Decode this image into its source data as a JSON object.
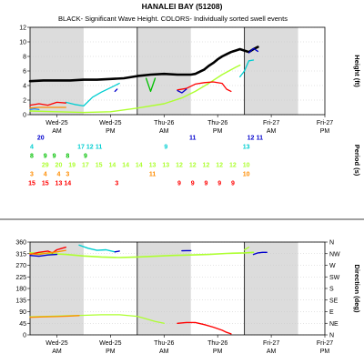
{
  "title": "HANALEI BAY (51208)",
  "subtitle": "BLACK- Significant Wave Height.  COLORS- Individually sorted swell events",
  "colors": {
    "height": "#000000",
    "shade": "#dcdcdc",
    "events": [
      "#ff0000",
      "#ff8c00",
      "#adff2f",
      "#00c000",
      "#00ced1",
      "#1e90ff",
      "#0000cd",
      "#ff1493"
    ]
  },
  "x_ticks": [
    {
      "day": "Wed-25",
      "ampm": "AM"
    },
    {
      "day": "Wed-25",
      "ampm": "PM"
    },
    {
      "day": "Thu-26",
      "ampm": "AM"
    },
    {
      "day": "Thu-26",
      "ampm": "PM"
    },
    {
      "day": "Fri-27",
      "ampm": "AM"
    },
    {
      "day": "Fri-27",
      "ampm": "PM"
    }
  ],
  "chart_data": [
    {
      "type": "line",
      "ylabel": "Height (ft)",
      "ylim": [
        0,
        12
      ],
      "yticks": [
        0,
        2,
        4,
        6,
        8,
        10,
        12
      ],
      "xlim": [
        0,
        66
      ],
      "x_units": "hours from Wed-25 00:00",
      "series": [
        {
          "color_key": "height",
          "width": 2.6,
          "x": [
            0,
            3,
            6,
            9,
            12,
            15,
            18,
            21,
            24,
            27,
            30,
            33,
            36,
            37,
            38,
            39,
            40,
            41,
            42,
            43,
            44,
            45,
            46,
            47,
            48,
            49,
            50,
            51
          ],
          "y": [
            4.6,
            4.7,
            4.7,
            4.7,
            4.8,
            4.8,
            4.9,
            5.0,
            5.3,
            5.5,
            5.6,
            5.5,
            5.5,
            5.6,
            5.9,
            6.2,
            6.7,
            7.1,
            7.6,
            8.0,
            8.3,
            8.6,
            8.8,
            9.0,
            8.8,
            8.6,
            9.0,
            9.3
          ]
        },
        {
          "color_key": 2,
          "width": 1.4,
          "x": [
            0,
            6,
            12,
            18,
            24,
            30,
            34,
            37,
            40,
            43,
            46,
            47
          ],
          "y": [
            0.5,
            0.4,
            0.3,
            0.4,
            0.9,
            1.5,
            2.3,
            3.2,
            4.3,
            5.5,
            6.5,
            6.8
          ]
        },
        {
          "color_key": 4,
          "width": 1.3,
          "x": [
            8,
            10,
            12,
            14,
            16,
            18,
            20
          ],
          "y": [
            1.7,
            1.4,
            1.2,
            2.4,
            3.1,
            3.7,
            4.3
          ]
        },
        {
          "color_key": 4,
          "width": 1.3,
          "x": [
            47,
            48,
            49,
            50
          ],
          "y": [
            5.2,
            6.0,
            7.4,
            7.5
          ]
        },
        {
          "color_key": 3,
          "width": 1.3,
          "x": [
            26,
            27,
            28
          ],
          "y": [
            5.0,
            3.2,
            5.0
          ]
        },
        {
          "color_key": 0,
          "width": 1.3,
          "x": [
            0,
            2,
            4,
            6,
            8
          ],
          "y": [
            1.3,
            1.5,
            1.3,
            1.7,
            1.6
          ]
        },
        {
          "color_key": 0,
          "width": 1.3,
          "x": [
            33,
            35,
            37,
            39,
            41,
            43,
            44,
            45
          ],
          "y": [
            3.4,
            3.6,
            4.2,
            4.4,
            4.5,
            4.3,
            3.5,
            3.2
          ]
        },
        {
          "color_key": 1,
          "width": 1.3,
          "x": [
            0,
            2,
            4,
            6,
            8
          ],
          "y": [
            0.9,
            1.0,
            1.0,
            1.0,
            1.0
          ]
        },
        {
          "color_key": 5,
          "width": 1.3,
          "x": [
            0,
            1,
            2
          ],
          "y": [
            0.7,
            0.8,
            0.7
          ]
        },
        {
          "color_key": 6,
          "width": 1.3,
          "x": [
            33,
            34,
            35
          ],
          "y": [
            3.3,
            3.0,
            3.5
          ]
        },
        {
          "color_key": 6,
          "width": 1.3,
          "x": [
            19,
            19.5
          ],
          "y": [
            3.2,
            3.5
          ]
        },
        {
          "color_key": 6,
          "width": 1.3,
          "x": [
            49,
            50,
            51
          ],
          "y": [
            8.5,
            9.1,
            8.7
          ]
        }
      ]
    },
    {
      "type": "table",
      "ylabel": "Period (s)",
      "rows": [
        {
          "color_key": 6,
          "cells": [
            {
              "x": 2,
              "t": "20"
            },
            {
              "x": 36,
              "t": "11"
            },
            {
              "x": 49,
              "t": "12"
            },
            {
              "x": 51,
              "t": "11"
            }
          ]
        },
        {
          "color_key": 4,
          "cells": [
            {
              "x": 0,
              "t": "4"
            },
            {
              "x": 11,
              "t": "17"
            },
            {
              "x": 13,
              "t": "12"
            },
            {
              "x": 15,
              "t": "11"
            },
            {
              "x": 30,
              "t": "9"
            },
            {
              "x": 48,
              "t": "13"
            }
          ]
        },
        {
          "color_key": 3,
          "cells": [
            {
              "x": 0,
              "t": "8"
            },
            {
              "x": 3,
              "t": "9"
            },
            {
              "x": 5,
              "t": "9"
            },
            {
              "x": 8,
              "t": "8"
            },
            {
              "x": 12,
              "t": "9"
            }
          ]
        },
        {
          "color_key": 2,
          "cells": [
            {
              "x": 3,
              "t": "29"
            },
            {
              "x": 6,
              "t": "20"
            },
            {
              "x": 9,
              "t": "19"
            },
            {
              "x": 12,
              "t": "17"
            },
            {
              "x": 15,
              "t": "15"
            },
            {
              "x": 18,
              "t": "14"
            },
            {
              "x": 21,
              "t": "14"
            },
            {
              "x": 24,
              "t": "14"
            },
            {
              "x": 27,
              "t": "13"
            },
            {
              "x": 30,
              "t": "13"
            },
            {
              "x": 33,
              "t": "12"
            },
            {
              "x": 36,
              "t": "12"
            },
            {
              "x": 39,
              "t": "12"
            },
            {
              "x": 42,
              "t": "12"
            },
            {
              "x": 45,
              "t": "12"
            },
            {
              "x": 48,
              "t": "10"
            }
          ]
        },
        {
          "color_key": 1,
          "cells": [
            {
              "x": 0,
              "t": "3"
            },
            {
              "x": 3,
              "t": "4"
            },
            {
              "x": 6,
              "t": "4"
            },
            {
              "x": 8,
              "t": "3"
            },
            {
              "x": 27,
              "t": "11"
            },
            {
              "x": 48,
              "t": "10"
            }
          ]
        },
        {
          "color_key": 0,
          "cells": [
            {
              "x": 0,
              "t": "15"
            },
            {
              "x": 3,
              "t": "15"
            },
            {
              "x": 6,
              "t": "13"
            },
            {
              "x": 8,
              "t": "14"
            },
            {
              "x": 19,
              "t": "3"
            },
            {
              "x": 33,
              "t": "9"
            },
            {
              "x": 36,
              "t": "9"
            },
            {
              "x": 39,
              "t": "9"
            },
            {
              "x": 42,
              "t": "9"
            },
            {
              "x": 45,
              "t": "9"
            }
          ]
        }
      ]
    },
    {
      "type": "line",
      "ylabel": "Direction (deg)",
      "ylim": [
        0,
        360
      ],
      "yticks": [
        0,
        45,
        90,
        135,
        180,
        225,
        270,
        315,
        360
      ],
      "right_ticks": [
        "N",
        "NE",
        "E",
        "SE",
        "S",
        "SW",
        "W",
        "NW",
        "N"
      ],
      "xlim": [
        0,
        66
      ],
      "series": [
        {
          "color_key": 2,
          "width": 1.6,
          "x": [
            0,
            4,
            8,
            12,
            16,
            20,
            24,
            28,
            32,
            36,
            40,
            44,
            48,
            50
          ],
          "y": [
            318,
            316,
            312,
            306,
            302,
            300,
            302,
            305,
            308,
            310,
            312,
            316,
            318,
            320
          ]
        },
        {
          "color_key": 2,
          "width": 1.4,
          "x": [
            48,
            49
          ],
          "y": [
            330,
            340
          ]
        },
        {
          "color_key": 0,
          "width": 1.4,
          "x": [
            0,
            2,
            4,
            5,
            6,
            7,
            8
          ],
          "y": [
            312,
            320,
            325,
            318,
            330,
            335,
            340
          ]
        },
        {
          "color_key": 1,
          "width": 1.3,
          "x": [
            0,
            2,
            4,
            6,
            8
          ],
          "y": [
            315,
            312,
            318,
            322,
            328
          ]
        },
        {
          "color_key": 4,
          "width": 1.4,
          "x": [
            11,
            13,
            15,
            17,
            19
          ],
          "y": [
            348,
            336,
            328,
            330,
            322
          ]
        },
        {
          "color_key": 6,
          "width": 1.4,
          "x": [
            0,
            2,
            4,
            6
          ],
          "y": [
            308,
            305,
            310,
            312
          ]
        },
        {
          "color_key": 6,
          "width": 1.4,
          "x": [
            19,
            20
          ],
          "y": [
            322,
            325
          ]
        },
        {
          "color_key": 6,
          "width": 1.4,
          "x": [
            34,
            35,
            36
          ],
          "y": [
            326,
            327,
            327
          ]
        },
        {
          "color_key": 6,
          "width": 1.4,
          "x": [
            50,
            51,
            52,
            53
          ],
          "y": [
            312,
            318,
            320,
            320
          ]
        },
        {
          "color_key": 2,
          "width": 1.3,
          "x": [
            0,
            4,
            8,
            12,
            16,
            20,
            24,
            26,
            28,
            30
          ],
          "y": [
            70,
            72,
            74,
            76,
            78,
            78,
            72,
            62,
            52,
            45
          ]
        },
        {
          "color_key": 1,
          "width": 1.3,
          "x": [
            0,
            3,
            6,
            9,
            11
          ],
          "y": [
            68,
            70,
            71,
            73,
            75
          ]
        },
        {
          "color_key": 0,
          "width": 1.4,
          "x": [
            33,
            35,
            37,
            39,
            41,
            43,
            44,
            45
          ],
          "y": [
            45,
            48,
            48,
            40,
            30,
            18,
            10,
            4
          ]
        }
      ]
    }
  ]
}
